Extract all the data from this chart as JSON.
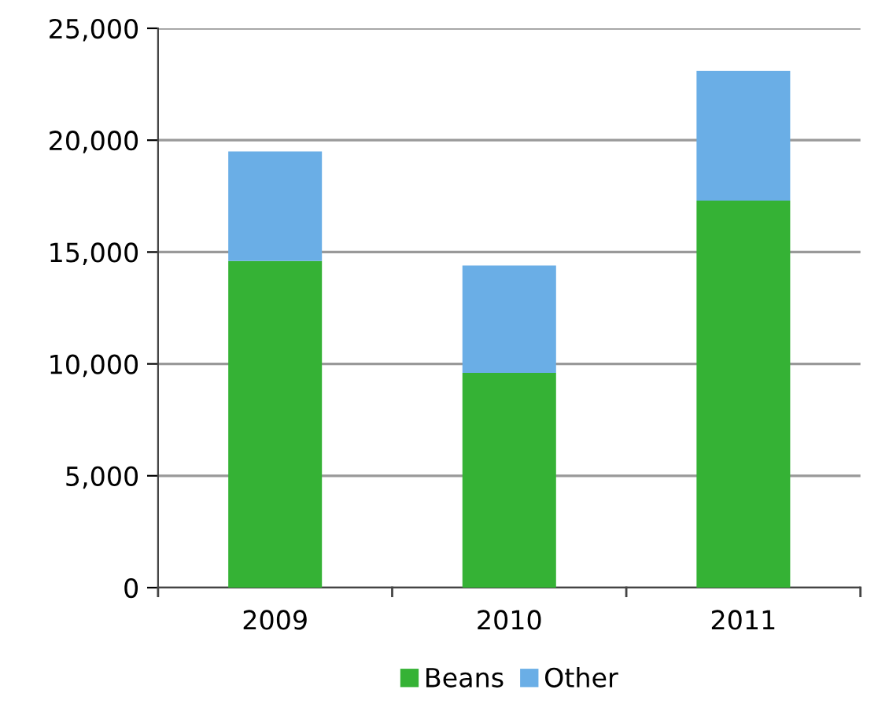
{
  "chart_data": {
    "type": "bar",
    "stacked": true,
    "categories": [
      "2009",
      "2010",
      "2011"
    ],
    "series": [
      {
        "name": "Beans",
        "color": "#35b235",
        "values": [
          14600,
          9600,
          17300
        ]
      },
      {
        "name": "Other",
        "color": "#6aaee6",
        "values": [
          4900,
          4800,
          5800
        ]
      }
    ],
    "ylim": [
      0,
      25000
    ],
    "yticks": [
      {
        "value": 0,
        "label": "0"
      },
      {
        "value": 5000,
        "label": "5,000"
      },
      {
        "value": 10000,
        "label": "10,000"
      },
      {
        "value": 15000,
        "label": "15,000"
      },
      {
        "value": 20000,
        "label": "20,000"
      },
      {
        "value": 25000,
        "label": "25,000"
      }
    ],
    "grid": "y",
    "legend": "bottom"
  }
}
